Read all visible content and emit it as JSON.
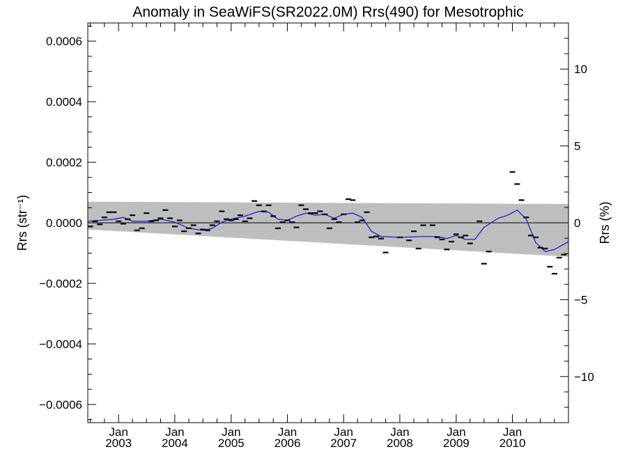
{
  "chart_data": {
    "type": "scatter",
    "title": "Anomaly in SeaWiFS(SR2022.0M) Rrs(490) for Mesotrophic",
    "ylabel_left": "Rrs (str⁻¹)",
    "ylabel_right": "Rrs (%)",
    "xlim": [
      "2002-06-15",
      "2010-12-31"
    ],
    "ylim": [
      -0.00066,
      0.00066
    ],
    "ylim_right": [
      -13,
      13
    ],
    "x_ticks": [
      {
        "date": "2003-01-01",
        "month": "Jan",
        "year": "2003"
      },
      {
        "date": "2004-01-01",
        "month": "Jan",
        "year": "2004"
      },
      {
        "date": "2005-01-01",
        "month": "Jan",
        "year": "2005"
      },
      {
        "date": "2006-01-01",
        "month": "Jan",
        "year": "2006"
      },
      {
        "date": "2007-01-01",
        "month": "Jan",
        "year": "2007"
      },
      {
        "date": "2008-01-01",
        "month": "Jan",
        "year": "2008"
      },
      {
        "date": "2009-01-01",
        "month": "Jan",
        "year": "2009"
      },
      {
        "date": "2010-01-01",
        "month": "Jan",
        "year": "2010"
      }
    ],
    "y_ticks_left": [
      {
        "value": 0.0006,
        "label": "0.0006"
      },
      {
        "value": 0.0004,
        "label": "0.0004"
      },
      {
        "value": 0.0002,
        "label": "0.0002"
      },
      {
        "value": 0.0,
        "label": "0.0000"
      },
      {
        "value": -0.0002,
        "label": "−0.0002"
      },
      {
        "value": -0.0004,
        "label": "−0.0004"
      },
      {
        "value": -0.0006,
        "label": "−0.0006"
      }
    ],
    "y_ticks_right": [
      {
        "value": 10,
        "label": "10"
      },
      {
        "value": 5,
        "label": "5"
      },
      {
        "value": 0,
        "label": "0"
      },
      {
        "value": -5,
        "label": "−5"
      },
      {
        "value": -10,
        "label": "−10"
      }
    ],
    "band": {
      "color": "#bebebe",
      "upper": [
        [
          "2002-06-15",
          7e-05
        ],
        [
          "2010-12-31",
          6.2e-05
        ]
      ],
      "lower": [
        [
          "2002-06-15",
          -2.2e-05
        ],
        [
          "2010-12-31",
          -0.000112
        ]
      ]
    },
    "zero_line": 0,
    "points": {
      "color": "#000000",
      "marker": "dash",
      "data": [
        [
          "2002-07-01",
          -1.2e-05
        ],
        [
          "2002-08-01",
          5e-06
        ],
        [
          "2002-09-01",
          -5e-06
        ],
        [
          "2002-10-01",
          1.8e-05
        ],
        [
          "2002-11-01",
          3.5e-05
        ],
        [
          "2002-12-01",
          3.5e-05
        ],
        [
          "2003-01-01",
          5e-06
        ],
        [
          "2003-02-01",
          -3e-06
        ],
        [
          "2003-03-01",
          1.2e-05
        ],
        [
          "2003-04-01",
          2.5e-05
        ],
        [
          "2003-05-01",
          -2.5e-05
        ],
        [
          "2003-06-01",
          -1.8e-05
        ],
        [
          "2003-07-01",
          3.2e-05
        ],
        [
          "2003-08-01",
          5e-06
        ],
        [
          "2003-09-01",
          8e-06
        ],
        [
          "2003-10-01",
          1.5e-05
        ],
        [
          "2003-11-01",
          4.2e-05
        ],
        [
          "2003-12-01",
          1.5e-05
        ],
        [
          "2004-01-01",
          -1.2e-05
        ],
        [
          "2004-02-01",
          8e-06
        ],
        [
          "2004-03-01",
          -2.8e-05
        ],
        [
          "2004-04-01",
          -1.8e-05
        ],
        [
          "2004-05-01",
          -8e-06
        ],
        [
          "2004-06-01",
          -3.5e-05
        ],
        [
          "2004-07-01",
          -2.2e-05
        ],
        [
          "2004-08-01",
          -2.5e-05
        ],
        [
          "2004-09-01",
          -8e-06
        ],
        [
          "2004-10-01",
          5e-06
        ],
        [
          "2004-11-01",
          3.8e-05
        ],
        [
          "2004-12-01",
          1.2e-05
        ],
        [
          "2005-01-01",
          8e-06
        ],
        [
          "2005-02-01",
          1.2e-05
        ],
        [
          "2005-03-01",
          2.5e-05
        ],
        [
          "2005-04-01",
          5e-06
        ],
        [
          "2005-05-01",
          1.5e-05
        ],
        [
          "2005-06-01",
          7.2e-05
        ],
        [
          "2005-07-01",
          5.8e-05
        ],
        [
          "2005-08-01",
          3.8e-05
        ],
        [
          "2005-09-01",
          5.8e-05
        ],
        [
          "2005-10-01",
          2.2e-05
        ],
        [
          "2005-11-01",
          -1.8e-05
        ],
        [
          "2005-12-01",
          2e-06
        ],
        [
          "2006-01-01",
          8e-06
        ],
        [
          "2006-02-01",
          2e-06
        ],
        [
          "2006-03-01",
          -1.5e-05
        ],
        [
          "2006-04-01",
          5.8e-05
        ],
        [
          "2006-05-01",
          4.5e-05
        ],
        [
          "2006-06-01",
          3.2e-05
        ],
        [
          "2006-07-01",
          3.2e-05
        ],
        [
          "2006-08-01",
          3.8e-05
        ],
        [
          "2006-09-01",
          2.8e-05
        ],
        [
          "2006-10-01",
          -1.8e-05
        ],
        [
          "2006-11-01",
          1.2e-05
        ],
        [
          "2006-12-01",
          2e-06
        ],
        [
          "2007-01-01",
          2.8e-05
        ],
        [
          "2007-02-01",
          7.8e-05
        ],
        [
          "2007-03-01",
          7.5e-05
        ],
        [
          "2007-04-01",
          2e-06
        ],
        [
          "2007-05-01",
          8e-06
        ],
        [
          "2007-06-01",
          3.5e-05
        ],
        [
          "2007-07-01",
          -4.8e-05
        ],
        [
          "2007-08-01",
          -4.5e-05
        ],
        [
          "2007-09-01",
          -5.2e-05
        ],
        [
          "2007-10-01",
          -9.8e-05
        ],
        [
          "2008-01-01",
          -4.8e-05
        ],
        [
          "2008-03-01",
          -5.8e-05
        ],
        [
          "2008-04-01",
          -2.8e-05
        ],
        [
          "2008-05-01",
          -8.5e-05
        ],
        [
          "2008-06-01",
          -8e-06
        ],
        [
          "2008-08-01",
          -8e-06
        ],
        [
          "2008-09-01",
          -4.8e-05
        ],
        [
          "2008-10-01",
          -5.5e-05
        ],
        [
          "2008-11-01",
          -8.8e-05
        ],
        [
          "2008-12-01",
          -6.2e-05
        ],
        [
          "2009-01-01",
          -3.8e-05
        ],
        [
          "2009-02-01",
          -4.8e-05
        ],
        [
          "2009-03-01",
          -4.2e-05
        ],
        [
          "2009-04-01",
          -6.8e-05
        ],
        [
          "2009-06-01",
          5e-06
        ],
        [
          "2009-07-01",
          -0.000135
        ],
        [
          "2009-08-01",
          -9.5e-05
        ],
        [
          "2010-01-01",
          0.000168
        ],
        [
          "2010-02-01",
          0.000128
        ],
        [
          "2010-03-01",
          7.5e-05
        ],
        [
          "2010-04-01",
          1.8e-05
        ],
        [
          "2010-05-01",
          -4.2e-05
        ],
        [
          "2010-06-01",
          -4.8e-05
        ],
        [
          "2010-07-01",
          -8.2e-05
        ],
        [
          "2010-08-01",
          -8.5e-05
        ],
        [
          "2010-09-01",
          -0.000145
        ],
        [
          "2010-10-01",
          -0.000168
        ],
        [
          "2010-11-01",
          -0.000115
        ],
        [
          "2010-12-01",
          -0.000105
        ]
      ]
    },
    "smoothed_line": {
      "color": "#1f1fdc",
      "data": [
        [
          "2002-06-15",
          5e-06
        ],
        [
          "2002-09-01",
          8e-06
        ],
        [
          "2002-12-01",
          1.2e-05
        ],
        [
          "2003-02-01",
          1.8e-05
        ],
        [
          "2003-04-01",
          5e-06
        ],
        [
          "2003-07-01",
          5e-06
        ],
        [
          "2003-10-01",
          1.2e-05
        ],
        [
          "2004-01-01",
          2e-06
        ],
        [
          "2004-04-01",
          -1.8e-05
        ],
        [
          "2004-07-01",
          -2.5e-05
        ],
        [
          "2004-09-01",
          -1.8e-05
        ],
        [
          "2004-11-01",
          2e-06
        ],
        [
          "2005-01-01",
          1.2e-05
        ],
        [
          "2005-04-01",
          2.2e-05
        ],
        [
          "2005-07-01",
          3.8e-05
        ],
        [
          "2005-09-01",
          3.5e-05
        ],
        [
          "2005-11-01",
          1.2e-05
        ],
        [
          "2006-01-01",
          8e-06
        ],
        [
          "2006-03-01",
          2.2e-05
        ],
        [
          "2006-05-01",
          3.2e-05
        ],
        [
          "2006-07-01",
          2.5e-05
        ],
        [
          "2006-09-01",
          2.8e-05
        ],
        [
          "2006-11-01",
          1.5e-05
        ],
        [
          "2007-01-01",
          2.8e-05
        ],
        [
          "2007-03-01",
          3.2e-05
        ],
        [
          "2007-05-01",
          1.8e-05
        ],
        [
          "2007-07-01",
          -2.8e-05
        ],
        [
          "2007-09-01",
          -4.5e-05
        ],
        [
          "2008-01-01",
          -4.8e-05
        ],
        [
          "2008-06-01",
          -4.5e-05
        ],
        [
          "2008-09-01",
          -4.5e-05
        ],
        [
          "2008-11-01",
          -5.2e-05
        ],
        [
          "2009-01-01",
          -4.2e-05
        ],
        [
          "2009-03-01",
          -5.5e-05
        ],
        [
          "2009-05-01",
          -5.5e-05
        ],
        [
          "2009-07-01",
          -1.5e-05
        ],
        [
          "2009-10-01",
          1.5e-05
        ],
        [
          "2009-12-01",
          2.5e-05
        ],
        [
          "2010-02-01",
          4.2e-05
        ],
        [
          "2010-04-01",
          1.2e-05
        ],
        [
          "2010-06-01",
          -6.5e-05
        ],
        [
          "2010-08-01",
          -9.5e-05
        ],
        [
          "2010-10-01",
          -8.8e-05
        ],
        [
          "2010-12-31",
          -6.2e-05
        ]
      ]
    }
  }
}
